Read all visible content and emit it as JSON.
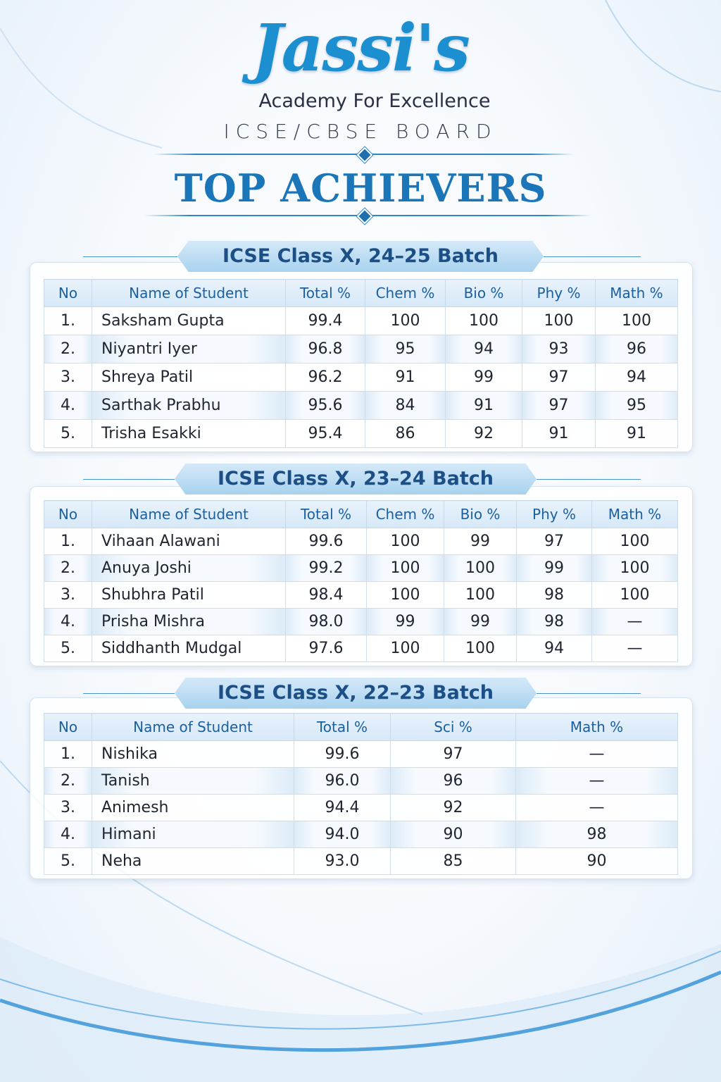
{
  "header": {
    "logo_text": "Jassi's",
    "academy": "Academy For Excellence",
    "board": "ICSE/CBSE BOARD",
    "title": "TOP ACHIEVERS"
  },
  "colors": {
    "accent": "#1b8fcf",
    "title": "#1a76b8",
    "ribbon_text": "#1b4f86"
  },
  "sections": [
    {
      "heading": "ICSE Class X, 24–25 Batch",
      "columns": [
        "No",
        "Name of Student",
        "Total %",
        "Chem %",
        "Bio %",
        "Phy %",
        "Math %"
      ],
      "rows": [
        [
          "1.",
          "Saksham Gupta",
          "99.4",
          "100",
          "100",
          "100",
          "100"
        ],
        [
          "2.",
          "Niyantri Iyer",
          "96.8",
          "95",
          "94",
          "93",
          "96"
        ],
        [
          "3.",
          "Shreya Patil",
          "96.2",
          "91",
          "99",
          "97",
          "94"
        ],
        [
          "4.",
          "Sarthak Prabhu",
          "95.6",
          "84",
          "91",
          "97",
          "95"
        ],
        [
          "5.",
          "Trisha Esakki",
          "95.4",
          "86",
          "92",
          "91",
          "91"
        ]
      ]
    },
    {
      "heading": "ICSE Class X, 23–24 Batch",
      "columns": [
        "No",
        "Name of Student",
        "Total %",
        "Chem %",
        "Bio %",
        "Phy %",
        "Math %"
      ],
      "rows": [
        [
          "1.",
          "Vihaan Alawani",
          "99.6",
          "100",
          "99",
          "97",
          "100"
        ],
        [
          "2.",
          "Anuya Joshi",
          "99.2",
          "100",
          "100",
          "99",
          "100"
        ],
        [
          "3.",
          "Shubhra Patil",
          "98.4",
          "100",
          "100",
          "98",
          "100"
        ],
        [
          "4.",
          "Prisha Mishra",
          "98.0",
          "99",
          "99",
          "98",
          "—"
        ],
        [
          "5.",
          "Siddhanth Mudgal",
          "97.6",
          "100",
          "100",
          "94",
          "—"
        ]
      ]
    },
    {
      "heading": "ICSE Class X, 22–23 Batch",
      "columns": [
        "No",
        "Name of Student",
        "Total %",
        "Sci %",
        "Math %"
      ],
      "rows": [
        [
          "1.",
          "Nishika",
          "99.6",
          "97",
          "—"
        ],
        [
          "2.",
          "Tanish",
          "96.0",
          "96",
          "—"
        ],
        [
          "3.",
          "Animesh",
          "94.4",
          "92",
          "—"
        ],
        [
          "4.",
          "Himani",
          "94.0",
          "90",
          "98"
        ],
        [
          "5.",
          "Neha",
          "93.0",
          "85",
          "90"
        ]
      ]
    }
  ]
}
